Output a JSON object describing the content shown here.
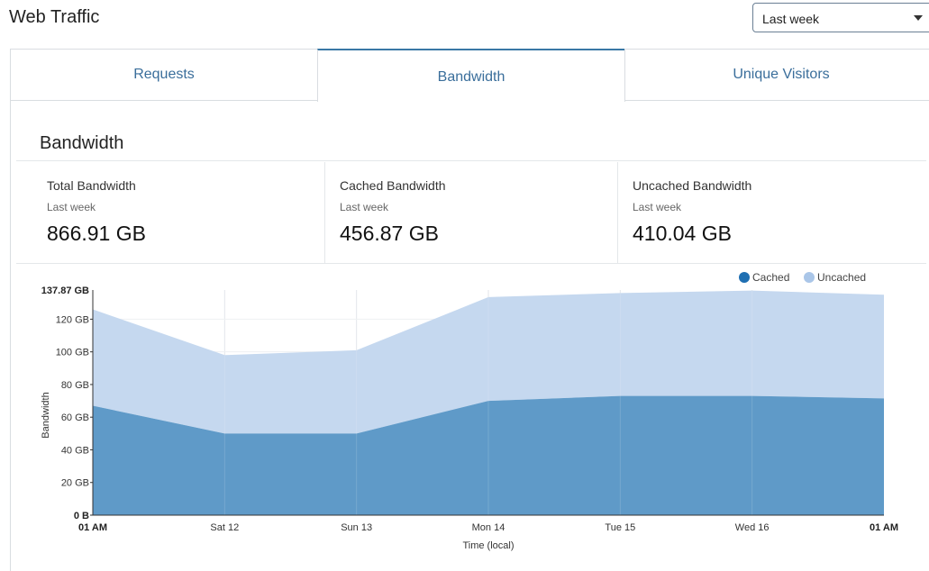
{
  "header": {
    "title": "Web Traffic"
  },
  "range_select": {
    "value": "Last week",
    "icon": "chevron-down-icon"
  },
  "tabs": [
    {
      "label": "Requests",
      "active": false
    },
    {
      "label": "Bandwidth",
      "active": true
    },
    {
      "label": "Unique Visitors",
      "active": false
    }
  ],
  "section": {
    "title": "Bandwidth"
  },
  "stats": [
    {
      "label": "Total Bandwidth",
      "period": "Last week",
      "value": "866.91 GB"
    },
    {
      "label": "Cached Bandwidth",
      "period": "Last week",
      "value": "456.87 GB"
    },
    {
      "label": "Uncached Bandwidth",
      "period": "Last week",
      "value": "410.04 GB"
    }
  ],
  "chart_data": {
    "type": "area",
    "stacked": true,
    "title": "",
    "xlabel": "Time (local)",
    "ylabel": "Bandwidth",
    "categories": [
      "01 AM",
      "Sat 12",
      "Sun 13",
      "Mon 14",
      "Tue 15",
      "Wed 16",
      "01 AM"
    ],
    "series": [
      {
        "name": "Cached",
        "color": "#5f9ac8",
        "legend_color": "#1f6fb2",
        "values": [
          67,
          50,
          50,
          70,
          73,
          73,
          71.5
        ]
      },
      {
        "name": "Uncached",
        "color": "#c5d8ef",
        "legend_color": "#aac6e8",
        "values": [
          59,
          48,
          51,
          63.5,
          63,
          64.5,
          63.5
        ]
      }
    ],
    "y_ticks": [
      "0 B",
      "20 GB",
      "40 GB",
      "60 GB",
      "80 GB",
      "100 GB",
      "120 GB"
    ],
    "y_max_label": "137.87 GB",
    "ylim": [
      0,
      137.87
    ],
    "legend_position": "top-right",
    "grid": true
  }
}
